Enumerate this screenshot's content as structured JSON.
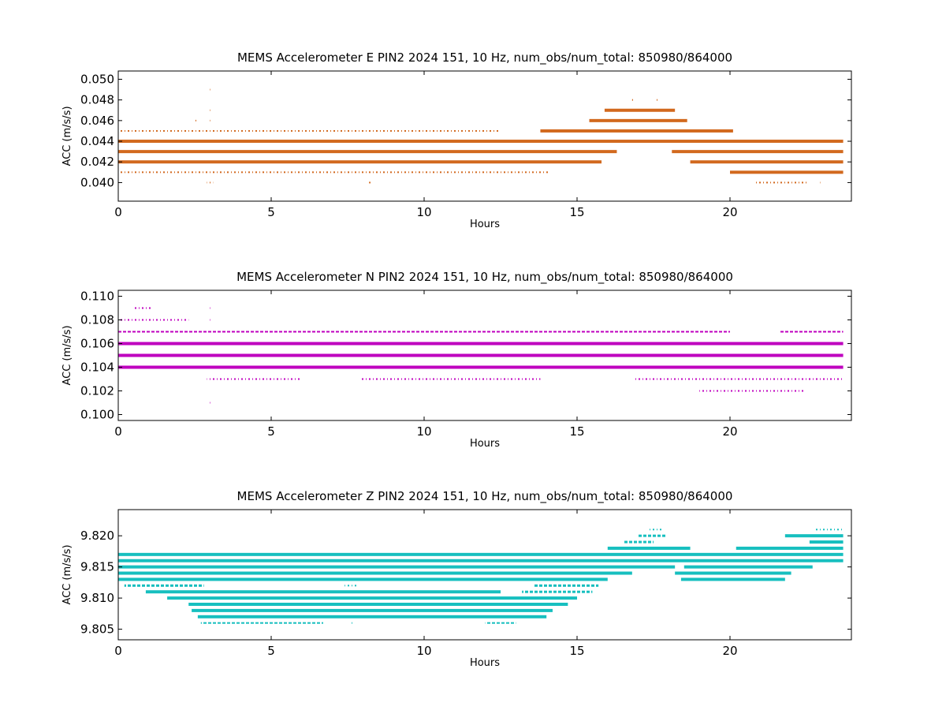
{
  "chart_data": [
    {
      "type": "scatter",
      "title": "MEMS Accelerometer E PIN2 2024 151, 10 Hz, num_obs/num_total: 850980/864000",
      "xlabel": "Hours",
      "ylabel": "ACC (m/s/s)",
      "xlim": [
        0,
        24
      ],
      "ylim": [
        0.0382,
        0.0508
      ],
      "xticks": [
        0,
        5,
        10,
        15,
        20
      ],
      "yticks": [
        0.04,
        0.042,
        0.044,
        0.046,
        0.048,
        0.05
      ],
      "ytick_decimals": 3,
      "color": "#d2691e",
      "series": [
        {
          "y": 0.04,
          "segments": [
            [
              2.9,
              3.1,
              0.25
            ],
            [
              8.2,
              8.2,
              0.25
            ],
            [
              20.8,
              22.5,
              0.3
            ],
            [
              22.9,
              22.9,
              0.25
            ]
          ]
        },
        {
          "y": 0.041,
          "segments": [
            [
              0,
              14.1,
              0.35
            ],
            [
              20.0,
              23.7,
              1
            ]
          ]
        },
        {
          "y": 0.042,
          "segments": [
            [
              0,
              15.8,
              1
            ],
            [
              18.7,
              23.7,
              1
            ]
          ]
        },
        {
          "y": 0.043,
          "segments": [
            [
              0,
              16.3,
              1
            ],
            [
              18.1,
              23.7,
              1
            ]
          ]
        },
        {
          "y": 0.044,
          "segments": [
            [
              0,
              23.7,
              1
            ]
          ]
        },
        {
          "y": 0.045,
          "segments": [
            [
              0,
              12.5,
              0.35
            ],
            [
              13.8,
              20.1,
              1
            ]
          ]
        },
        {
          "y": 0.046,
          "segments": [
            [
              2.5,
              2.5,
              0.3
            ],
            [
              3.0,
              3.0,
              0.3
            ],
            [
              15.4,
              18.6,
              1
            ]
          ]
        },
        {
          "y": 0.047,
          "segments": [
            [
              3.0,
              3.0,
              0.3
            ],
            [
              15.9,
              18.2,
              1
            ]
          ]
        },
        {
          "y": 0.048,
          "segments": [
            [
              16.8,
              16.8,
              0.3
            ],
            [
              17.6,
              17.6,
              0.3
            ]
          ]
        },
        {
          "y": 0.049,
          "segments": [
            [
              3.0,
              3.0,
              0.3
            ]
          ]
        }
      ]
    },
    {
      "type": "scatter",
      "title": "MEMS Accelerometer N PIN2 2024 151, 10 Hz, num_obs/num_total: 850980/864000",
      "xlabel": "Hours",
      "ylabel": "ACC (m/s/s)",
      "xlim": [
        0,
        24
      ],
      "ylim": [
        0.0995,
        0.1105
      ],
      "xticks": [
        0,
        5,
        10,
        15,
        20
      ],
      "yticks": [
        0.1,
        0.102,
        0.104,
        0.106,
        0.108,
        0.11
      ],
      "ytick_decimals": 3,
      "color": "#bf00bf",
      "series": [
        {
          "y": 0.101,
          "segments": [
            [
              3.0,
              3.0,
              0.3
            ]
          ]
        },
        {
          "y": 0.102,
          "segments": [
            [
              19.0,
              22.4,
              0.25
            ]
          ]
        },
        {
          "y": 0.103,
          "segments": [
            [
              2.9,
              6.0,
              0.25
            ],
            [
              7.9,
              13.8,
              0.3
            ],
            [
              16.9,
              23.7,
              0.35
            ]
          ]
        },
        {
          "y": 0.104,
          "segments": [
            [
              0,
              23.7,
              1
            ]
          ]
        },
        {
          "y": 0.105,
          "segments": [
            [
              0,
              23.7,
              1
            ]
          ]
        },
        {
          "y": 0.106,
          "segments": [
            [
              0,
              23.7,
              1
            ]
          ]
        },
        {
          "y": 0.107,
          "segments": [
            [
              0,
              20.0,
              0.45
            ],
            [
              21.6,
              23.7,
              0.4
            ]
          ]
        },
        {
          "y": 0.108,
          "segments": [
            [
              0,
              2.3,
              0.35
            ],
            [
              3.0,
              3.0,
              0.3
            ]
          ]
        },
        {
          "y": 0.109,
          "segments": [
            [
              0.5,
              1.1,
              0.25
            ],
            [
              3.0,
              3.0,
              0.3
            ]
          ]
        }
      ]
    },
    {
      "type": "scatter",
      "title": "MEMS Accelerometer Z PIN2 2024 151, 10 Hz, num_obs/num_total: 850980/864000",
      "xlabel": "Hours",
      "ylabel": "ACC (m/s/s)",
      "xlim": [
        0,
        24
      ],
      "ylim": [
        9.8033,
        9.8242
      ],
      "xticks": [
        0,
        5,
        10,
        15,
        20
      ],
      "yticks": [
        9.805,
        9.81,
        9.815,
        9.82
      ],
      "ytick_decimals": 3,
      "color": "#17bfbf",
      "series": [
        {
          "y": 9.806,
          "segments": [
            [
              2.7,
              6.7,
              0.45
            ],
            [
              7.6,
              7.6,
              0.3
            ],
            [
              12.0,
              13.0,
              0.4
            ]
          ]
        },
        {
          "y": 9.807,
          "segments": [
            [
              2.6,
              14.0,
              1
            ]
          ]
        },
        {
          "y": 9.808,
          "segments": [
            [
              2.4,
              14.2,
              1
            ]
          ]
        },
        {
          "y": 9.809,
          "segments": [
            [
              2.3,
              14.7,
              1
            ]
          ]
        },
        {
          "y": 9.81,
          "segments": [
            [
              1.6,
              15.0,
              1
            ]
          ]
        },
        {
          "y": 9.811,
          "segments": [
            [
              0.9,
              12.5,
              0.9
            ],
            [
              13.2,
              15.5,
              0.8
            ]
          ]
        },
        {
          "y": 9.812,
          "segments": [
            [
              0.2,
              2.8,
              0.8
            ],
            [
              7.4,
              7.8,
              0.3
            ],
            [
              13.6,
              15.7,
              0.8
            ]
          ]
        },
        {
          "y": 9.813,
          "segments": [
            [
              0,
              16.0,
              1
            ],
            [
              18.4,
              21.8,
              1
            ]
          ]
        },
        {
          "y": 9.814,
          "segments": [
            [
              0,
              16.8,
              1
            ],
            [
              18.2,
              22.0,
              1
            ]
          ]
        },
        {
          "y": 9.815,
          "segments": [
            [
              0,
              18.2,
              1
            ],
            [
              18.5,
              22.7,
              1
            ]
          ]
        },
        {
          "y": 9.816,
          "segments": [
            [
              0,
              23.7,
              1
            ]
          ]
        },
        {
          "y": 9.817,
          "segments": [
            [
              0,
              23.7,
              1
            ]
          ]
        },
        {
          "y": 9.818,
          "segments": [
            [
              16.0,
              18.7,
              1
            ],
            [
              20.2,
              23.7,
              1
            ]
          ]
        },
        {
          "y": 9.819,
          "segments": [
            [
              16.5,
              17.5,
              0.8
            ],
            [
              22.6,
              23.7,
              1
            ]
          ]
        },
        {
          "y": 9.82,
          "segments": [
            [
              17.0,
              17.9,
              0.7
            ],
            [
              21.8,
              23.7,
              1
            ]
          ]
        },
        {
          "y": 9.821,
          "segments": [
            [
              17.3,
              17.8,
              0.3
            ],
            [
              22.8,
              23.7,
              0.35
            ]
          ]
        }
      ]
    }
  ]
}
